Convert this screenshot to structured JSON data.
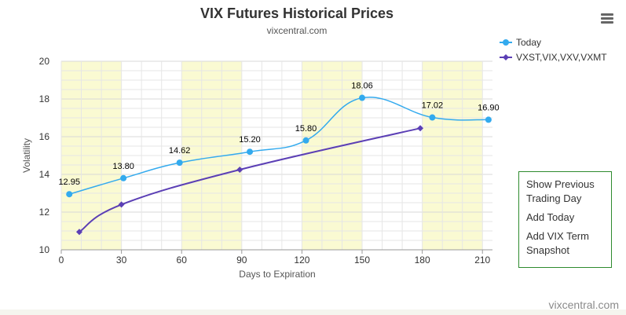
{
  "chart_data": {
    "type": "line",
    "title": "VIX Futures Historical Prices",
    "subtitle": "vixcentral.com",
    "xlabel": "Days to Expiration",
    "ylabel": "Volatility",
    "xlim": [
      0,
      215
    ],
    "ylim": [
      10,
      20
    ],
    "x_ticks": [
      0,
      30,
      60,
      90,
      120,
      150,
      180,
      210
    ],
    "y_ticks": [
      10,
      12,
      14,
      16,
      18,
      20
    ],
    "grid": true,
    "legend_position": "top-right",
    "series": [
      {
        "name": "Today",
        "color": "#33aaee",
        "marker": "circle",
        "smooth": true,
        "points": [
          {
            "x": 4,
            "y": 12.95,
            "label": "12.95"
          },
          {
            "x": 31,
            "y": 13.8,
            "label": "13.80"
          },
          {
            "x": 59,
            "y": 14.62,
            "label": "14.62"
          },
          {
            "x": 94,
            "y": 15.2,
            "label": "15.20"
          },
          {
            "x": 122,
            "y": 15.8,
            "label": "15.80"
          },
          {
            "x": 150,
            "y": 18.06,
            "label": "18.06"
          },
          {
            "x": 185,
            "y": 17.02,
            "label": "17.02"
          },
          {
            "x": 213,
            "y": 16.9,
            "label": "16.90"
          }
        ]
      },
      {
        "name": "VXST,VIX,VXV,VXMT",
        "color": "#5b3fb5",
        "marker": "diamond",
        "smooth": true,
        "points": [
          {
            "x": 9,
            "y": 10.95
          },
          {
            "x": 30,
            "y": 12.4
          },
          {
            "x": 89,
            "y": 14.25
          },
          {
            "x": 179,
            "y": 16.45
          }
        ]
      }
    ],
    "shaded_bands": [
      [
        0,
        30
      ],
      [
        60,
        90
      ],
      [
        120,
        150
      ],
      [
        180,
        210
      ]
    ],
    "band_color": "#fafad2"
  },
  "panel": {
    "items": [
      "Show Previous Trading Day",
      "Add Today",
      "Add VIX Term Snapshot"
    ]
  },
  "watermark": "vixcentral.com",
  "menu_icon": "hamburger-menu-icon"
}
